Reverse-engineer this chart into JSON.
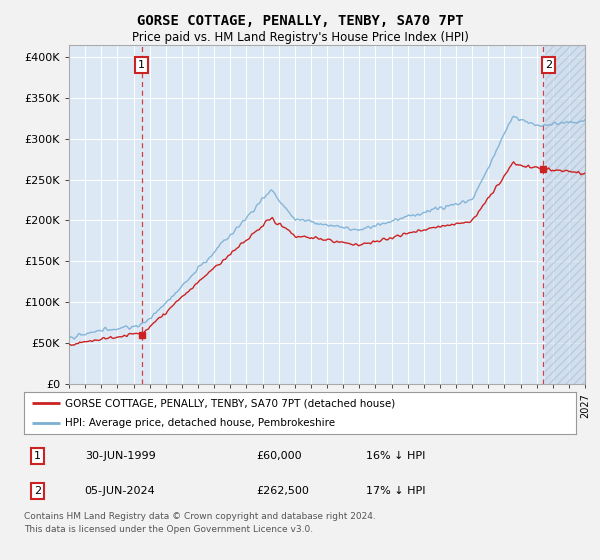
{
  "title": "GORSE COTTAGE, PENALLY, TENBY, SA70 7PT",
  "subtitle": "Price paid vs. HM Land Registry's House Price Index (HPI)",
  "ylabel_ticks": [
    "£0",
    "£50K",
    "£100K",
    "£150K",
    "£200K",
    "£250K",
    "£300K",
    "£350K",
    "£400K"
  ],
  "ytick_values": [
    0,
    50000,
    100000,
    150000,
    200000,
    250000,
    300000,
    350000,
    400000
  ],
  "ylim": [
    0,
    415000
  ],
  "xlim_start": 1995.0,
  "xlim_end": 2027.0,
  "hpi_color": "#7bafd4",
  "price_color": "#cc2222",
  "marker1_date": 1999.5,
  "marker1_price": 60000,
  "marker2_date": 2024.42,
  "marker2_price": 262500,
  "annotation1_label": "1",
  "annotation2_label": "2",
  "legend_label1": "GORSE COTTAGE, PENALLY, TENBY, SA70 7PT (detached house)",
  "legend_label2": "HPI: Average price, detached house, Pembrokeshire",
  "table_row1": [
    "1",
    "30-JUN-1999",
    "£60,000",
    "16% ↓ HPI"
  ],
  "table_row2": [
    "2",
    "05-JUN-2024",
    "£262,500",
    "17% ↓ HPI"
  ],
  "footnote": "Contains HM Land Registry data © Crown copyright and database right 2024.\nThis data is licensed under the Open Government Licence v3.0.",
  "bg_color": "#dce9f5",
  "grid_color": "#ffffff",
  "hatch_region_start": 2024.5
}
